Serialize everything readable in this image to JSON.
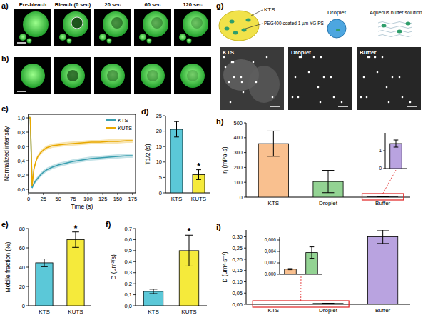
{
  "images": {
    "a": {
      "label": "a)",
      "captions": [
        "Pre-bleach",
        "Bleach (0 sec)",
        "20 sec",
        "60 sec",
        "120 sec"
      ]
    },
    "b": {
      "label": "b)"
    }
  },
  "diagram": {
    "label": "g)",
    "kts": "KTS",
    "particle": "PEG400 coated 1 µm YG PS",
    "droplet": "Droplet",
    "buffer": "Aqueous buffer solution",
    "image_labels": [
      "KTS",
      "Droplet",
      "Buffer"
    ]
  },
  "chart_data": [
    {
      "type": "line",
      "title": "c)",
      "x_label": "Time (s)",
      "y_label": "Normalized intensity",
      "x": [
        0,
        3,
        6,
        9,
        12,
        15,
        20,
        25,
        30,
        40,
        50,
        60,
        75,
        90,
        105,
        120,
        135,
        150,
        165,
        175
      ],
      "xlim": [
        0,
        180
      ],
      "ylim": [
        -0.05,
        1.05
      ],
      "xticks": [
        0,
        25,
        50,
        75,
        100,
        125,
        150,
        175
      ],
      "yticks": [
        {
          "value": 0,
          "label": "0,0"
        },
        {
          "value": 0.2,
          "label": "0,2"
        },
        {
          "value": 0.4,
          "label": "0,4"
        },
        {
          "value": 0.6,
          "label": "0,6"
        },
        {
          "value": 0.8,
          "label": "0,8"
        },
        {
          "value": 1,
          "label": "1,0"
        }
      ],
      "legend": "upper right",
      "series": [
        {
          "name": "KTS",
          "color": "#3a9fb0",
          "values": [
            1,
            1,
            0.02,
            0.08,
            0.12,
            0.15,
            0.2,
            0.24,
            0.27,
            0.31,
            0.34,
            0.36,
            0.39,
            0.41,
            0.43,
            0.44,
            0.45,
            0.46,
            0.47,
            0.47
          ],
          "errors": [
            0.02,
            0.02,
            0.02,
            0.03,
            0.03,
            0.03,
            0.03,
            0.03,
            0.03,
            0.03,
            0.03,
            0.03,
            0.03,
            0.03,
            0.03,
            0.03,
            0.03,
            0.03,
            0.03,
            0.03
          ]
        },
        {
          "name": "KUTS",
          "color": "#e8a800",
          "values": [
            1,
            1,
            0.05,
            0.28,
            0.38,
            0.45,
            0.51,
            0.55,
            0.58,
            0.61,
            0.62,
            0.63,
            0.64,
            0.65,
            0.66,
            0.66,
            0.67,
            0.67,
            0.68,
            0.68
          ],
          "errors": [
            0.02,
            0.02,
            0.02,
            0.03,
            0.03,
            0.03,
            0.03,
            0.03,
            0.03,
            0.03,
            0.03,
            0.03,
            0.03,
            0.03,
            0.03,
            0.03,
            0.03,
            0.03,
            0.03,
            0.03
          ]
        }
      ]
    },
    {
      "type": "bar",
      "title": "d)",
      "categories": [
        "KTS",
        "KUTS"
      ],
      "values": [
        20.6,
        5.9
      ],
      "errors": [
        2.5,
        1.6
      ],
      "colors": [
        "#5bc8d8",
        "#f5ea3b"
      ],
      "y_label": "T1/2 (s)",
      "ylim": [
        0,
        25
      ],
      "yticks": [
        0,
        5,
        10,
        15,
        20,
        25
      ],
      "annotations": [
        {
          "index": 1,
          "text": "*"
        }
      ]
    },
    {
      "type": "bar",
      "title": "e)",
      "categories": [
        "KTS",
        "KUTS"
      ],
      "values": [
        44.5,
        68.5
      ],
      "errors": [
        4,
        8
      ],
      "colors": [
        "#5bc8d8",
        "#f5ea3b"
      ],
      "y_label": "Mobile fraction (%)",
      "ylim": [
        0,
        80
      ],
      "yticks": [
        0,
        20,
        40,
        60,
        80
      ],
      "annotations": [
        {
          "index": 1,
          "text": "*"
        }
      ]
    },
    {
      "type": "bar",
      "title": "f)",
      "categories": [
        "KTS",
        "KUTS"
      ],
      "values": [
        0.13,
        0.5
      ],
      "errors": [
        0.02,
        0.14
      ],
      "colors": [
        "#5bc8d8",
        "#f5ea3b"
      ],
      "y_label": "D (µm²/s)",
      "ylim": [
        0,
        0.7
      ],
      "yticks": [
        {
          "value": 0,
          "label": "0,0"
        },
        {
          "value": 0.1,
          "label": "0,1"
        },
        {
          "value": 0.2,
          "label": "0,2"
        },
        {
          "value": 0.3,
          "label": "0,3"
        },
        {
          "value": 0.4,
          "label": "0,4"
        },
        {
          "value": 0.5,
          "label": "0,5"
        },
        {
          "value": 0.6,
          "label": "0,6"
        },
        {
          "value": 0.7,
          "label": "0,7"
        }
      ],
      "annotations": [
        {
          "index": 1,
          "text": "*"
        }
      ]
    },
    {
      "type": "bar",
      "title": "h)",
      "categories": [
        "KTS",
        "Droplet",
        "Buffer"
      ],
      "values": [
        360,
        105,
        1.4
      ],
      "errors": [
        85,
        75,
        0.2
      ],
      "colors": [
        "#f9c08f",
        "#93d393",
        "#b9a3e0"
      ],
      "y_label": "η (mPa·s)",
      "ylim": [
        0,
        500
      ],
      "yticks": [
        0,
        100,
        200,
        300,
        400,
        500
      ],
      "inset": {
        "values": [
          1.4
        ],
        "errors": [
          0.2
        ],
        "ylim": [
          0,
          2
        ],
        "yticks": [
          0,
          1
        ]
      }
    },
    {
      "type": "bar",
      "title": "i)",
      "categories": [
        "KTS",
        "Droplet",
        "Buffer"
      ],
      "values": [
        0.0009,
        0.0038,
        0.3
      ],
      "errors": [
        0.0001,
        0.001,
        0.03
      ],
      "colors": [
        "#f9c08f",
        "#93d393",
        "#b9a3e0"
      ],
      "y_label": "D (µm²·s⁻¹)",
      "ylim": [
        0,
        0.33
      ],
      "yticks": [
        {
          "value": 0,
          "label": "0,00"
        },
        {
          "value": 0.05,
          "label": "0,05"
        },
        {
          "value": 0.1,
          "label": "0,10"
        },
        {
          "value": 0.15,
          "label": "0,15"
        },
        {
          "value": 0.2,
          "label": "0,20"
        },
        {
          "value": 0.25,
          "label": "0,25"
        },
        {
          "value": 0.3,
          "label": "0,30"
        }
      ],
      "inset": {
        "values": [
          0.0009,
          0.0038
        ],
        "errors": [
          0.0001,
          0.001
        ],
        "ylim": [
          0,
          0.0065
        ],
        "yticks": [
          {
            "value": 0,
            "label": "0,000"
          },
          {
            "value": 0.002,
            "label": "0,002"
          },
          {
            "value": 0.004,
            "label": "0,004"
          },
          {
            "value": 0.006,
            "label": "0,006"
          }
        ]
      }
    }
  ]
}
